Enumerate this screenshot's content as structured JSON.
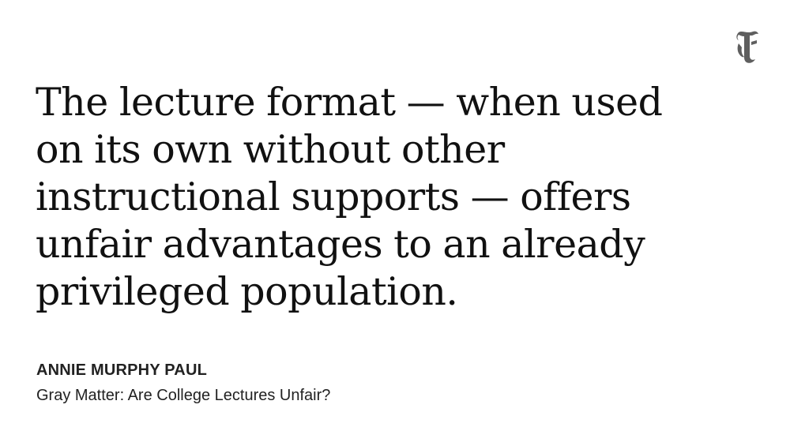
{
  "card": {
    "logo": {
      "icon": "nyt-t-logo-icon",
      "glyph": "𝕿",
      "color": "#5f5f5f"
    },
    "quote": "The lecture format — when used on its own without other instructional supports — offers unfair advantages to an already privileged population.",
    "author": "ANNIE MURPHY PAUL",
    "source": "Gray Matter: Are College Lectures Unfair?"
  }
}
